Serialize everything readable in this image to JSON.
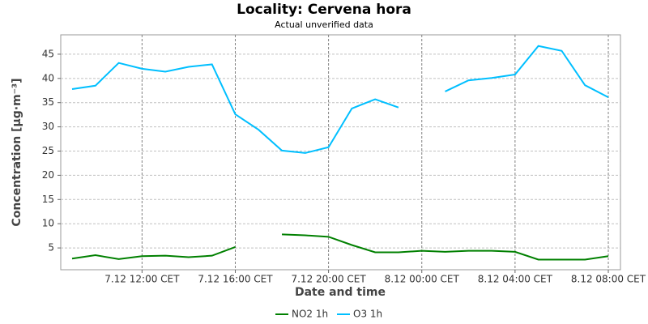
{
  "chart_data": {
    "type": "line",
    "title": "Locality: Cervena hora",
    "subtitle": "Actual unverified data",
    "x_label": "Date and time",
    "y_label": "Concentration [µg·m⁻³]",
    "categories": [
      null,
      null,
      null,
      "7.12 12:00 CET",
      null,
      null,
      null,
      "7.12 16:00 CET",
      null,
      null,
      null,
      "7.12 20:00 CET",
      null,
      null,
      null,
      "8.12 00:00 CET",
      null,
      null,
      null,
      "8.12 04:00 CET",
      null,
      null,
      null,
      "8.12 08:00 CET"
    ],
    "series": [
      {
        "name": "NO2 1h",
        "color": "#008000",
        "values": [
          2.8,
          3.5,
          2.7,
          3.3,
          3.4,
          3.1,
          3.4,
          5.2,
          null,
          7.8,
          7.6,
          7.3,
          5.6,
          4.1,
          4.1,
          4.4,
          4.2,
          4.4,
          4.4,
          4.2,
          2.6,
          2.6,
          2.6,
          3.3
        ]
      },
      {
        "name": "O3 1h",
        "color": "#00bfff",
        "values": [
          37.8,
          38.5,
          43.2,
          42.0,
          41.4,
          42.4,
          42.9,
          32.6,
          29.4,
          25.1,
          24.6,
          25.8,
          33.8,
          35.7,
          34.0,
          null,
          37.3,
          39.6,
          40.1,
          40.8,
          46.7,
          45.7,
          38.6,
          36.1
        ]
      }
    ],
    "ylim": [
      0.5,
      49
    ],
    "yticks": [
      5,
      10,
      15,
      20,
      25,
      30,
      35,
      40,
      45
    ],
    "grid": true,
    "legend": "bottom"
  }
}
